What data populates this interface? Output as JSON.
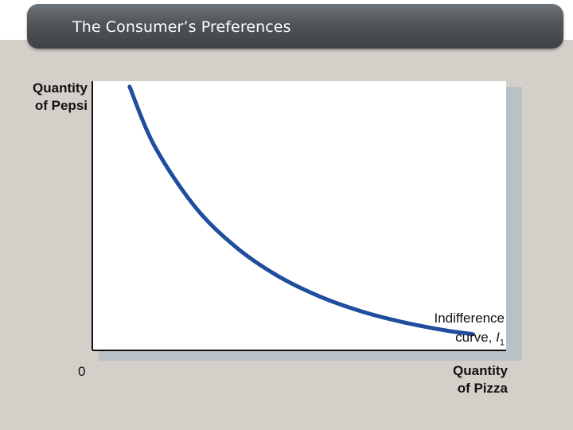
{
  "slide": {
    "title": "The Consumer’s Preferences"
  },
  "chart_data": {
    "type": "line",
    "title": "The Consumer’s Preferences",
    "xlabel": "Quantity of Pizza",
    "ylabel": "Quantity of Pepsi",
    "xlabel_lines": [
      "Quantity",
      "of Pizza"
    ],
    "ylabel_lines": [
      "Quantity",
      "of Pepsi"
    ],
    "origin_label": "0",
    "grid": false,
    "series": [
      {
        "name": "Indifference curve, I1",
        "label_lines": [
          "Indifference",
          "curve, "
        ],
        "label_symbol": "I",
        "label_subscript": "1",
        "color": "#1f4e9e",
        "x": [
          0.09,
          0.15,
          0.25,
          0.35,
          0.45,
          0.55,
          0.65,
          0.75,
          0.85,
          0.92
        ],
        "y": [
          0.98,
          0.76,
          0.53,
          0.38,
          0.275,
          0.2,
          0.145,
          0.105,
          0.075,
          0.06
        ]
      }
    ],
    "xlim": [
      0,
      1
    ],
    "ylim": [
      0,
      1
    ]
  },
  "colors": {
    "title_bar": "#4f5458",
    "background_panel": "#d4cfc9",
    "plot_shadow": "#b9c0c6",
    "curve": "#1f4e9e",
    "axis": "#111111"
  }
}
